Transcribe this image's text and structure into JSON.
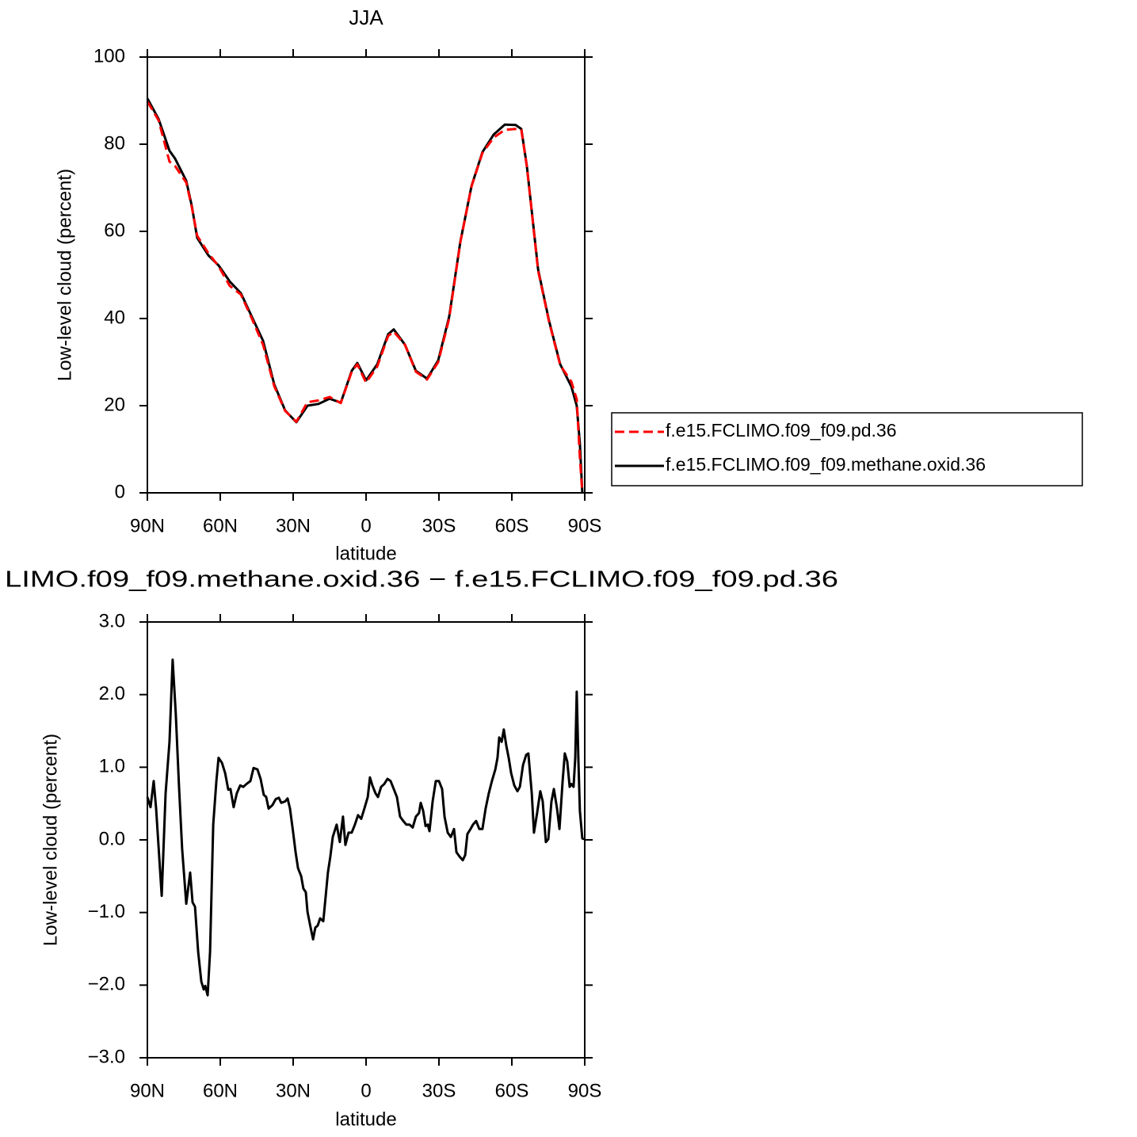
{
  "chart_data": [
    {
      "type": "line",
      "title": "JJA",
      "xlabel": "latitude",
      "ylabel": "Low-level cloud (percent)",
      "xlim": [
        90,
        -90
      ],
      "xticks": [
        {
          "value": 90,
          "label": "90N"
        },
        {
          "value": 60,
          "label": "60N"
        },
        {
          "value": 30,
          "label": "30N"
        },
        0,
        {
          "value": -30,
          "label": "30S"
        },
        {
          "value": -60,
          "label": "60S"
        },
        {
          "value": -90,
          "label": "90S"
        }
      ],
      "ylim": [
        0,
        100
      ],
      "yticks": [
        0,
        20,
        40,
        60,
        80,
        100
      ],
      "legend": "right",
      "x": [
        90.0,
        85.4,
        80.9,
        78.6,
        74.0,
        71.7,
        69.5,
        64.9,
        60.7,
        56.1,
        51.5,
        47.0,
        42.4,
        37.8,
        33.3,
        28.7,
        24.1,
        19.6,
        15.0,
        10.4,
        5.9,
        3.6,
        0.0,
        -4.6,
        -9.1,
        -11.4,
        -16.0,
        -20.5,
        -25.1,
        -29.7,
        -34.2,
        -38.8,
        -43.4,
        -47.9,
        -52.5,
        -57.1,
        -61.6,
        -63.9,
        -66.2,
        -70.8,
        -75.3,
        -79.9,
        -84.5,
        -86.7,
        -88.0,
        -89.0
      ],
      "series": [
        {
          "name": "f.e15.FCLIMO.f09_f09.pd.36",
          "color": "#ff0000",
          "dashed": true,
          "values": [
            89.8,
            85.5,
            76,
            75,
            71.2,
            65.5,
            59,
            55,
            52,
            47.5,
            45.5,
            40,
            34,
            24.5,
            18.8,
            16.3,
            20.8,
            21.2,
            22,
            20.6,
            27.8,
            29.5,
            25.3,
            29,
            36,
            37,
            34,
            27.8,
            26,
            30,
            40,
            57.5,
            70.3,
            78,
            81.5,
            83.3,
            83.5,
            83.3,
            74.8,
            51,
            39.3,
            29.3,
            25.5,
            21.5,
            8,
            0
          ]
        },
        {
          "name": "f.e15.FCLIMO.f09_f09.methane.oxid.36",
          "color": "#000000",
          "dashed": false,
          "values": [
            90.5,
            85.8,
            78.5,
            76.7,
            71.6,
            65.8,
            58.5,
            54.5,
            52.2,
            48.5,
            45.8,
            40.4,
            34.9,
            24.9,
            18.9,
            16.2,
            20,
            20.4,
            21.6,
            20.7,
            28,
            29.8,
            25.8,
            29.5,
            36.4,
            37.5,
            34,
            28,
            26.2,
            30.4,
            40.4,
            57.6,
            70.4,
            78.2,
            82.2,
            84.5,
            84.4,
            83.5,
            74.9,
            51.3,
            39.5,
            29.5,
            24.4,
            20,
            11.3,
            0
          ]
        }
      ]
    },
    {
      "type": "line",
      "title": "LIMO.f09_f09.methane.oxid.36 − f.e15.FCLIMO.f09_f09.pd.36",
      "xlabel": "latitude",
      "ylabel": "Low-level cloud (percent)",
      "xlim": [
        90,
        -90
      ],
      "xticks": [
        {
          "value": 90,
          "label": "90N"
        },
        {
          "value": 60,
          "label": "60N"
        },
        {
          "value": 30,
          "label": "30N"
        },
        0,
        {
          "value": -30,
          "label": "30S"
        },
        {
          "value": -60,
          "label": "60S"
        },
        {
          "value": -90,
          "label": "90S"
        }
      ],
      "ylim": [
        -3,
        3
      ],
      "yticks": [
        {
          "value": -3,
          "label": "−3.0"
        },
        {
          "value": -2,
          "label": "−2.0"
        },
        {
          "value": -1,
          "label": "−1.0"
        },
        {
          "value": 0,
          "label": "0.0"
        },
        {
          "value": 1,
          "label": "1.0"
        },
        {
          "value": 2,
          "label": "2.0"
        },
        {
          "value": 3,
          "label": "3.0"
        }
      ],
      "color": "#000000",
      "x": [
        90.0,
        88.7,
        87.4,
        86.4,
        84.1,
        82.5,
        80.9,
        79.6,
        78.3,
        77.0,
        75.7,
        74.0,
        72.4,
        71.4,
        70.4,
        69.1,
        67.8,
        66.8,
        66.2,
        65.2,
        64.2,
        62.9,
        61.6,
        60.7,
        59.3,
        58.0,
        56.7,
        55.8,
        54.5,
        53.2,
        51.8,
        50.5,
        49.2,
        47.6,
        46.3,
        44.7,
        43.4,
        42.1,
        41.1,
        40.1,
        38.5,
        37.2,
        35.9,
        34.9,
        33.3,
        32.3,
        31.3,
        30.0,
        29.0,
        28.0,
        26.7,
        25.8,
        24.8,
        24.1,
        22.8,
        21.8,
        20.9,
        19.9,
        18.9,
        17.6,
        16.6,
        15.7,
        14.7,
        13.7,
        12.1,
        10.8,
        9.5,
        8.5,
        7.2,
        5.9,
        4.6,
        3.3,
        2.0,
        0.7,
        -0.7,
        -1.6,
        -2.6,
        -3.9,
        -4.9,
        -6.2,
        -7.5,
        -8.8,
        -10.1,
        -11.4,
        -12.7,
        -14.0,
        -15.3,
        -16.6,
        -17.9,
        -19.2,
        -20.5,
        -21.8,
        -22.5,
        -23.5,
        -24.5,
        -25.4,
        -26.1,
        -27.4,
        -28.7,
        -30.0,
        -31.3,
        -32.3,
        -33.6,
        -34.9,
        -36.2,
        -37.2,
        -38.5,
        -39.8,
        -40.8,
        -41.7,
        -43.0,
        -44.0,
        -45.3,
        -46.6,
        -47.9,
        -49.2,
        -50.5,
        -51.8,
        -53.2,
        -54.1,
        -54.8,
        -55.8,
        -56.7,
        -57.7,
        -58.7,
        -59.7,
        -61.0,
        -62.3,
        -63.3,
        -64.6,
        -65.9,
        -66.8,
        -68.2,
        -69.1,
        -70.4,
        -71.7,
        -72.7,
        -74.0,
        -75.0,
        -76.3,
        -77.3,
        -78.6,
        -79.6,
        -80.9,
        -81.8,
        -82.8,
        -83.8,
        -84.5,
        -85.4,
        -86.1,
        -86.7,
        -87.4,
        -88.0,
        -89.0,
        -90.0
      ],
      "values": [
        0.59,
        0.45,
        0.81,
        0.43,
        -0.77,
        0.64,
        1.35,
        2.48,
        1.73,
        0.75,
        -0.12,
        -0.88,
        -0.45,
        -0.86,
        -0.92,
        -1.54,
        -1.95,
        -2.06,
        -2.01,
        -2.14,
        -1.54,
        0.21,
        0.81,
        1.13,
        1.06,
        0.92,
        0.69,
        0.7,
        0.45,
        0.64,
        0.75,
        0.73,
        0.77,
        0.81,
        0.99,
        0.97,
        0.84,
        0.62,
        0.59,
        0.43,
        0.48,
        0.56,
        0.58,
        0.51,
        0.53,
        0.57,
        0.43,
        0.1,
        -0.17,
        -0.39,
        -0.5,
        -0.67,
        -0.72,
        -0.99,
        -1.21,
        -1.37,
        -1.21,
        -1.18,
        -1.08,
        -1.12,
        -0.77,
        -0.45,
        -0.23,
        0.04,
        0.21,
        -0.03,
        0.32,
        -0.07,
        0.1,
        0.1,
        0.21,
        0.34,
        0.29,
        0.43,
        0.59,
        0.86,
        0.75,
        0.64,
        0.59,
        0.73,
        0.77,
        0.84,
        0.81,
        0.7,
        0.59,
        0.32,
        0.26,
        0.21,
        0.21,
        0.17,
        0.32,
        0.37,
        0.51,
        0.4,
        0.19,
        0.21,
        0.12,
        0.53,
        0.81,
        0.81,
        0.7,
        0.32,
        0.1,
        0.04,
        0.15,
        -0.17,
        -0.23,
        -0.28,
        -0.21,
        0.08,
        0.15,
        0.21,
        0.26,
        0.15,
        0.15,
        0.43,
        0.64,
        0.81,
        0.97,
        1.13,
        1.41,
        1.35,
        1.52,
        1.3,
        1.13,
        0.92,
        0.75,
        0.67,
        0.73,
        1.03,
        1.17,
        1.19,
        0.64,
        0.1,
        0.37,
        0.67,
        0.53,
        -0.03,
        0.01,
        0.53,
        0.7,
        0.43,
        0.15,
        0.81,
        1.19,
        1.08,
        0.73,
        0.77,
        0.73,
        1.13,
        2.04,
        1.08,
        0.4,
        0.02,
        0.01
      ]
    }
  ]
}
